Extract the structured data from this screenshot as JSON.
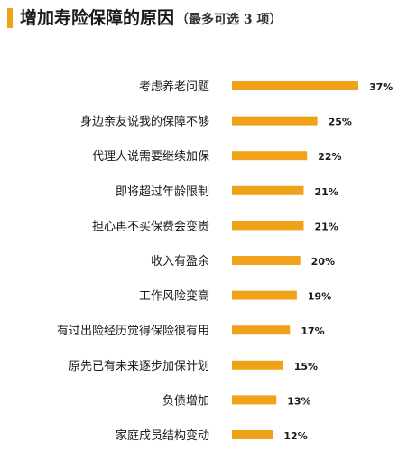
{
  "colors": {
    "bar": "#F0A318",
    "accent": "#F0A318",
    "text": "#1a1a1a"
  },
  "chart_data": {
    "type": "bar",
    "orientation": "horizontal",
    "title": "增加寿险保障的原因",
    "subtitle": "（最多可选 3 项）",
    "xlabel": "",
    "ylabel": "",
    "value_suffix": "%",
    "grid": false,
    "legend": "none",
    "xlim": [
      0,
      37
    ],
    "categories": [
      "考虑养老问题",
      "身边亲友说我的保障不够",
      "代理人说需要继续加保",
      "即将超过年龄限制",
      "担心再不买保费会变贵",
      "收入有盈余",
      "工作风险变高",
      "有过出险经历觉得保险很有用",
      "原先已有未来逐步加保计划",
      "负债增加",
      "家庭成员结构变动"
    ],
    "values": [
      37,
      25,
      22,
      21,
      21,
      20,
      19,
      17,
      15,
      13,
      12
    ]
  }
}
